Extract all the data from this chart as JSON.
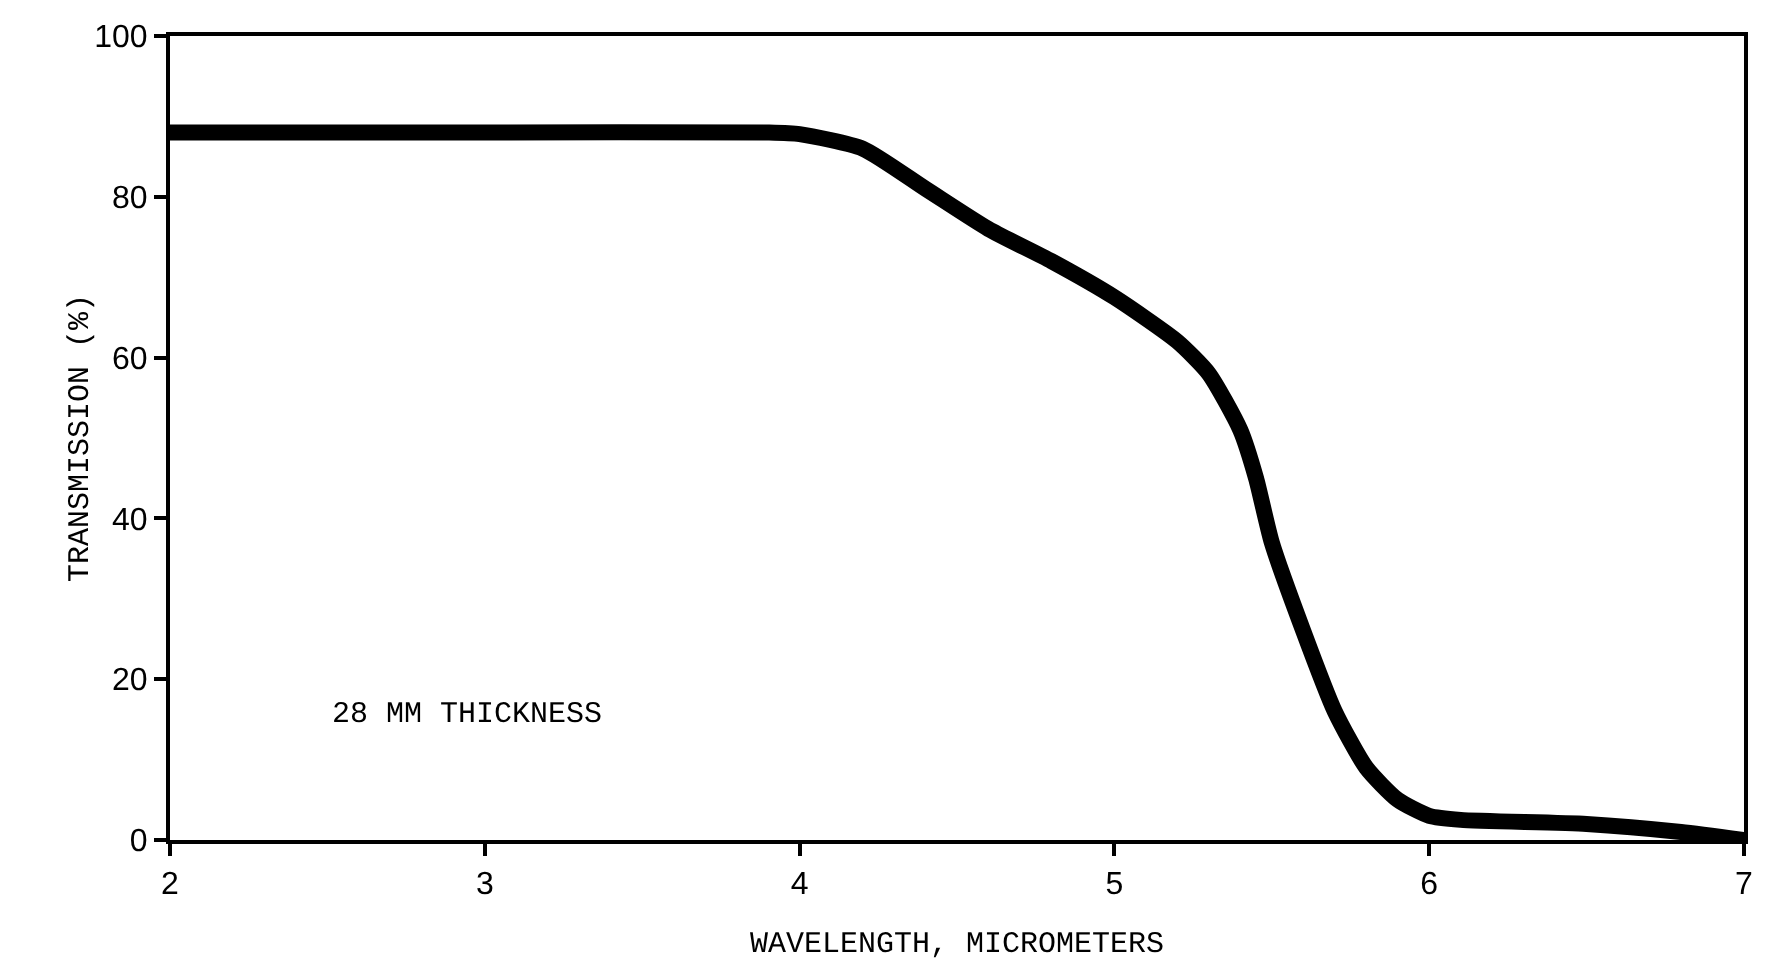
{
  "chart_data": {
    "type": "line",
    "xlabel": "WAVELENGTH, MICROMETERS",
    "ylabel": "TRANSMISSION (%)",
    "x": [
      2.0,
      3.0,
      3.9,
      4.0,
      4.2,
      4.4,
      4.6,
      4.8,
      5.0,
      5.2,
      5.3,
      5.4,
      5.45,
      5.5,
      5.6,
      5.7,
      5.8,
      5.9,
      6.0,
      6.1,
      6.5,
      6.8,
      7.0
    ],
    "series": [
      {
        "color": "#000000",
        "values": [
          88,
          88,
          88,
          87.8,
          86,
          81,
          76,
          72,
          67.5,
          62,
          58,
          51,
          45,
          37,
          26,
          16,
          9,
          5,
          3,
          2.5,
          2,
          1,
          0
        ]
      }
    ],
    "xlim": [
      2,
      7
    ],
    "xticks": [
      2,
      3,
      4,
      5,
      6,
      7
    ],
    "ylim": [
      0,
      100
    ],
    "yticks": [
      0,
      20,
      40,
      60,
      80,
      100
    ],
    "grid": false,
    "line_style": "solid",
    "annotations": [
      "28 MM THICKNESS"
    ]
  }
}
